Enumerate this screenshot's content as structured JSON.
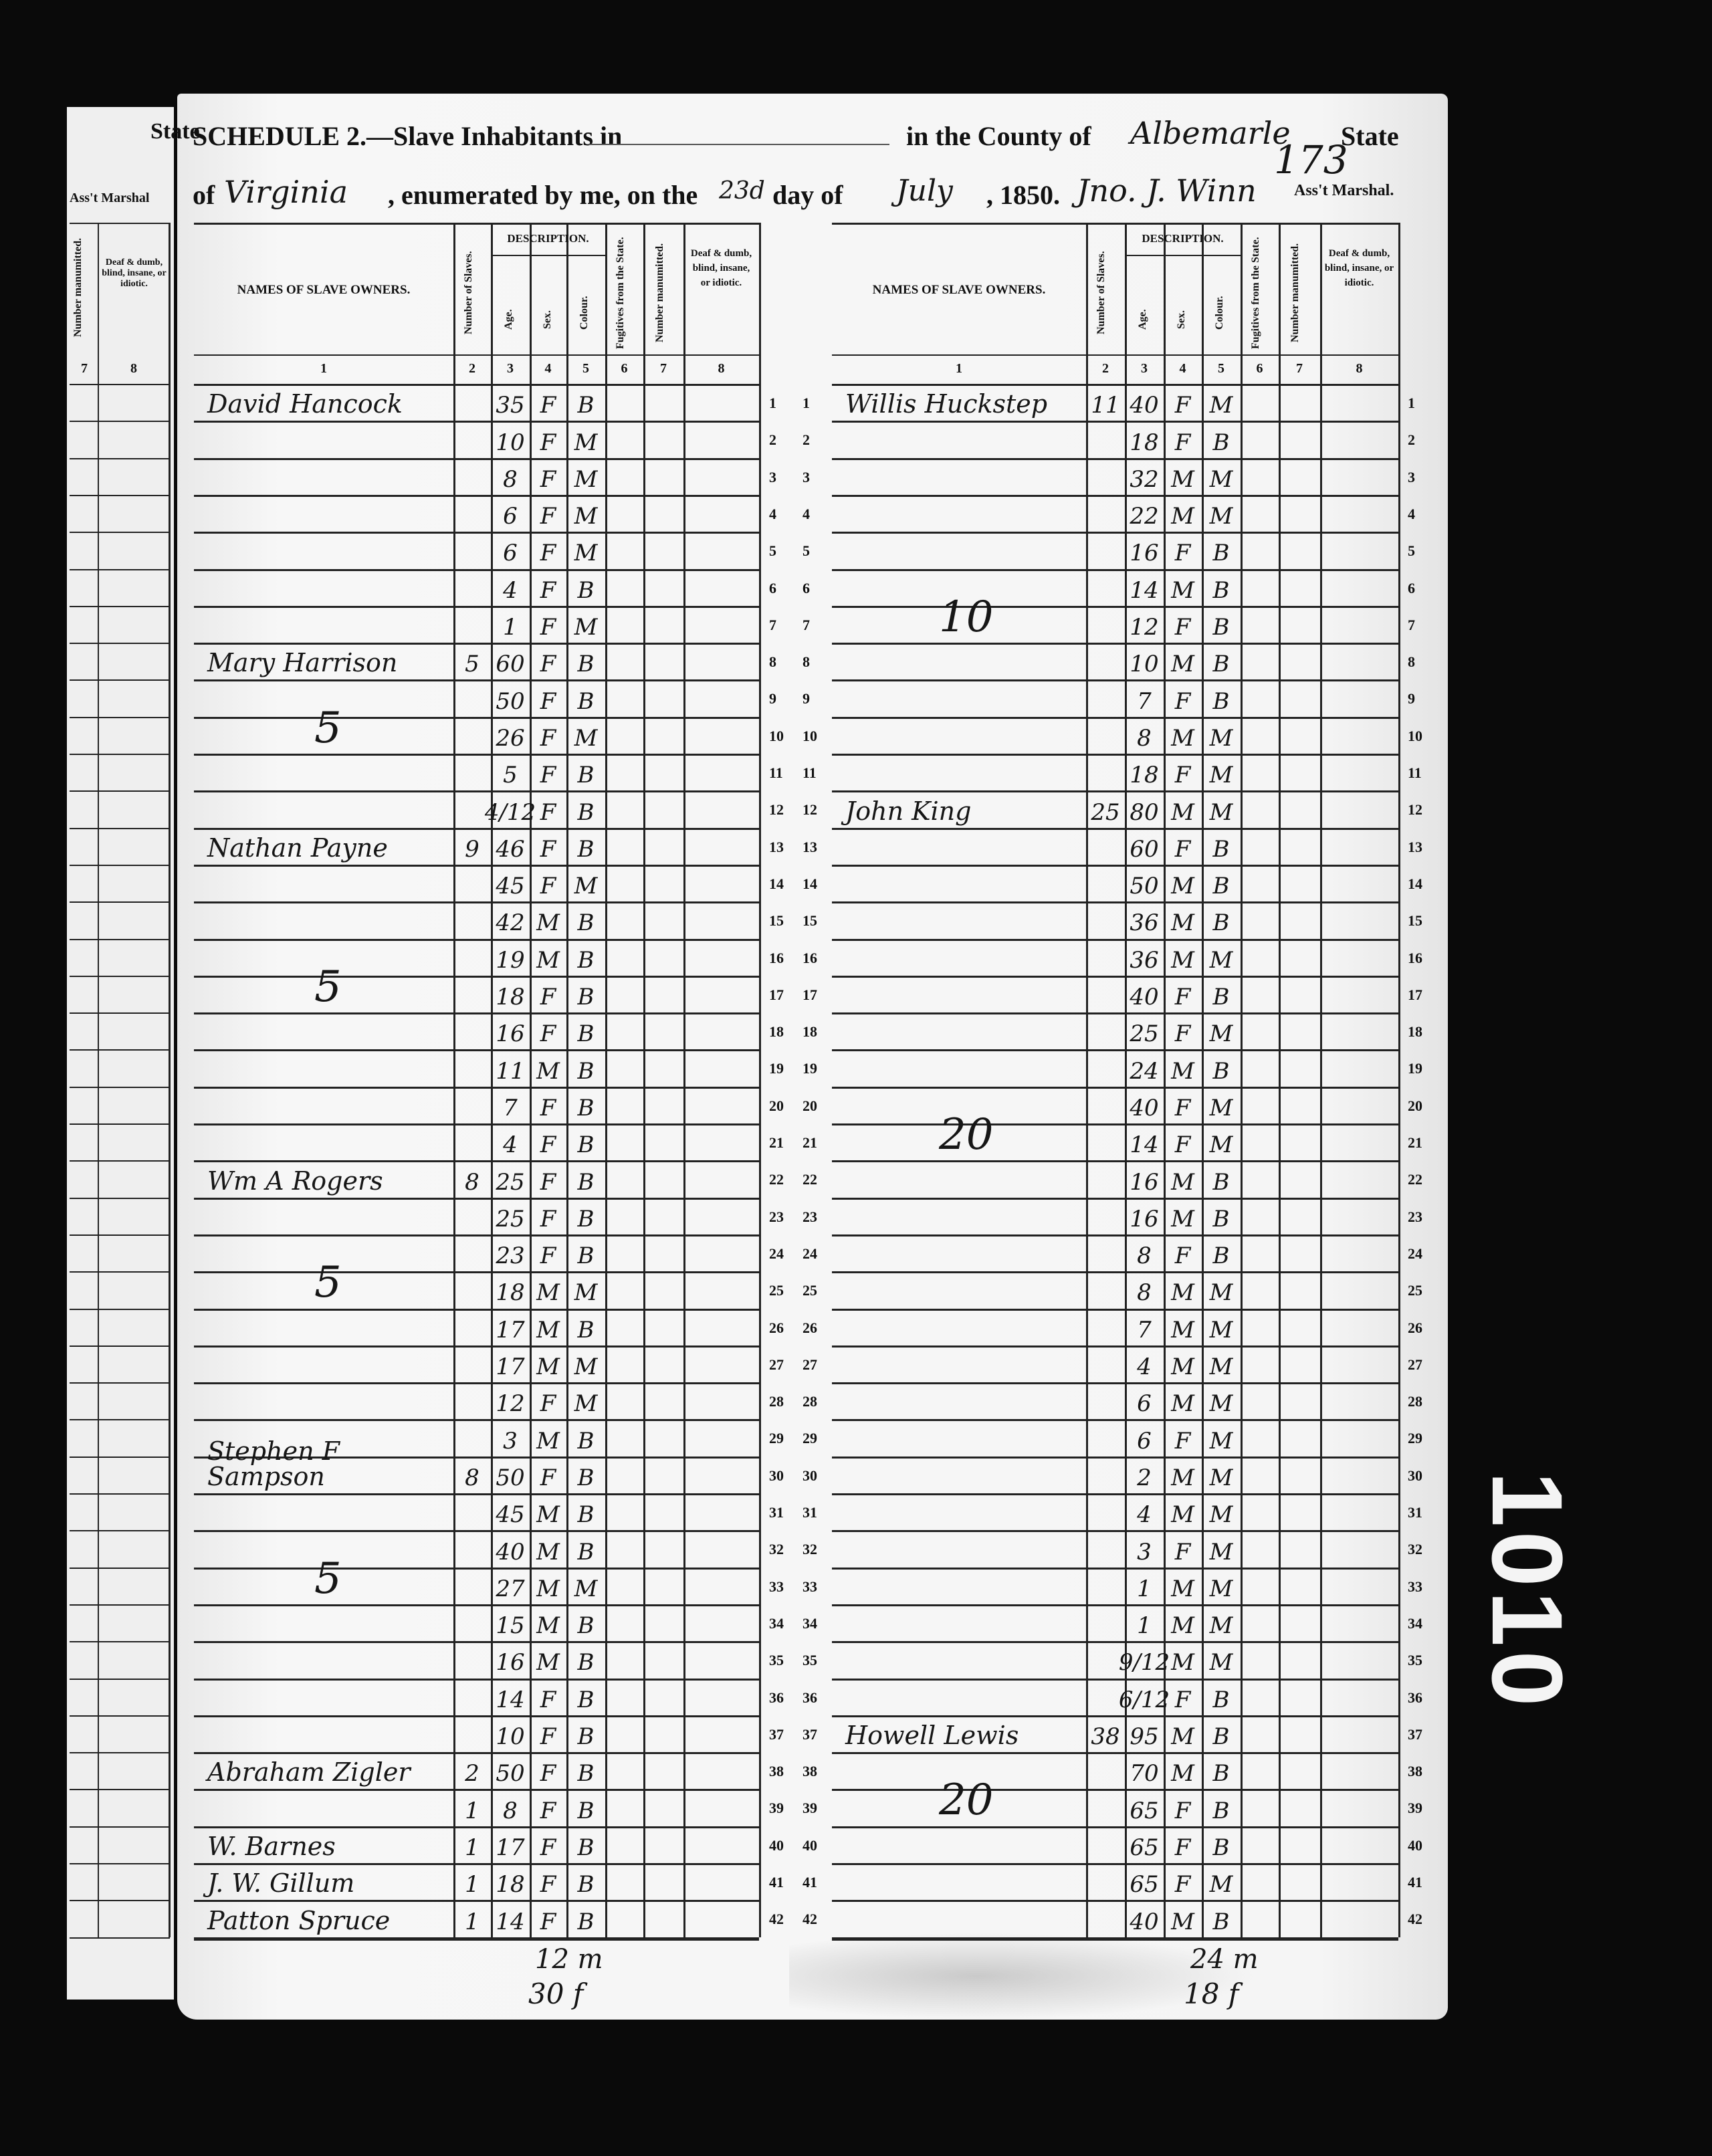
{
  "header": {
    "state_left": "State",
    "marshal_left": "Ass't Marshal",
    "schedule_title": "SCHEDULE 2.—Slave Inhabitants in",
    "county_label": "in the County of",
    "county": "Albemarle",
    "state_label": "State",
    "of_label": "of",
    "state": "Virginia",
    "enumerated_label": ", enumerated by me, on the",
    "day": "23d",
    "day_of_label": "day of",
    "month": "July",
    "year": ", 1850.",
    "marshal_name": "Jno. J. Winn",
    "marshal_label": "Ass't Marshal.",
    "page_number": "173"
  },
  "column_headers": {
    "owners": "NAMES OF SLAVE OWNERS.",
    "number_of_slaves": "Number of Slaves.",
    "description": "DESCRIPTION.",
    "age": "Age.",
    "sex": "Sex.",
    "colour": "Colour.",
    "fugitives": "Fugitives from the State.",
    "manumitted": "Number manumitted.",
    "deaf": "Deaf & dumb, blind, insane, or idiotic.",
    "numbers": [
      "1",
      "2",
      "3",
      "4",
      "5",
      "6",
      "7",
      "8"
    ],
    "strip_numbers": [
      "7",
      "8"
    ]
  },
  "left_table": {
    "rows": [
      {
        "n": "1",
        "owner": "David Hancock",
        "count": "",
        "age": "35",
        "sex": "F",
        "colour": "B"
      },
      {
        "n": "2",
        "owner": "",
        "count": "",
        "age": "10",
        "sex": "F",
        "colour": "M"
      },
      {
        "n": "3",
        "owner": "",
        "count": "",
        "age": "8",
        "sex": "F",
        "colour": "M"
      },
      {
        "n": "4",
        "owner": "",
        "count": "",
        "age": "6",
        "sex": "F",
        "colour": "M"
      },
      {
        "n": "5",
        "owner": "",
        "count": "",
        "age": "6",
        "sex": "F",
        "colour": "M"
      },
      {
        "n": "6",
        "owner": "",
        "count": "",
        "age": "4",
        "sex": "F",
        "colour": "B"
      },
      {
        "n": "7",
        "owner": "",
        "count": "",
        "age": "1",
        "sex": "F",
        "colour": "M"
      },
      {
        "n": "8",
        "owner": "Mary Harrison",
        "count": "5",
        "age": "60",
        "sex": "F",
        "colour": "B"
      },
      {
        "n": "9",
        "owner": "",
        "count": "",
        "age": "50",
        "sex": "F",
        "colour": "B"
      },
      {
        "n": "10",
        "owner": "",
        "count": "",
        "age": "26",
        "sex": "F",
        "colour": "M",
        "tally": "5"
      },
      {
        "n": "11",
        "owner": "",
        "count": "",
        "age": "5",
        "sex": "F",
        "colour": "B"
      },
      {
        "n": "12",
        "owner": "",
        "count": "",
        "age": "4/12",
        "sex": "F",
        "colour": "B"
      },
      {
        "n": "13",
        "owner": "Nathan Payne",
        "count": "9",
        "age": "46",
        "sex": "F",
        "colour": "B"
      },
      {
        "n": "14",
        "owner": "",
        "count": "",
        "age": "45",
        "sex": "F",
        "colour": "M"
      },
      {
        "n": "15",
        "owner": "",
        "count": "",
        "age": "42",
        "sex": "M",
        "colour": "B"
      },
      {
        "n": "16",
        "owner": "",
        "count": "",
        "age": "19",
        "sex": "M",
        "colour": "B"
      },
      {
        "n": "17",
        "owner": "",
        "count": "",
        "age": "18",
        "sex": "F",
        "colour": "B",
        "tally": "5"
      },
      {
        "n": "18",
        "owner": "",
        "count": "",
        "age": "16",
        "sex": "F",
        "colour": "B"
      },
      {
        "n": "19",
        "owner": "",
        "count": "",
        "age": "11",
        "sex": "M",
        "colour": "B"
      },
      {
        "n": "20",
        "owner": "",
        "count": "",
        "age": "7",
        "sex": "F",
        "colour": "B"
      },
      {
        "n": "21",
        "owner": "",
        "count": "",
        "age": "4",
        "sex": "F",
        "colour": "B"
      },
      {
        "n": "22",
        "owner": "Wm A Rogers",
        "count": "8",
        "age": "25",
        "sex": "F",
        "colour": "B"
      },
      {
        "n": "23",
        "owner": "",
        "count": "",
        "age": "25",
        "sex": "F",
        "colour": "B"
      },
      {
        "n": "24",
        "owner": "",
        "count": "",
        "age": "23",
        "sex": "F",
        "colour": "B"
      },
      {
        "n": "25",
        "owner": "",
        "count": "",
        "age": "18",
        "sex": "M",
        "colour": "M",
        "tally": "5"
      },
      {
        "n": "26",
        "owner": "",
        "count": "",
        "age": "17",
        "sex": "M",
        "colour": "B"
      },
      {
        "n": "27",
        "owner": "",
        "count": "",
        "age": "17",
        "sex": "M",
        "colour": "M"
      },
      {
        "n": "28",
        "owner": "",
        "count": "",
        "age": "12",
        "sex": "F",
        "colour": "M"
      },
      {
        "n": "29",
        "owner": "",
        "count": "",
        "age": "3",
        "sex": "M",
        "colour": "B"
      },
      {
        "n": "30",
        "owner": "Stephen F Sampson",
        "count": "8",
        "age": "50",
        "sex": "F",
        "colour": "B"
      },
      {
        "n": "31",
        "owner": "",
        "count": "",
        "age": "45",
        "sex": "M",
        "colour": "B"
      },
      {
        "n": "32",
        "owner": "",
        "count": "",
        "age": "40",
        "sex": "M",
        "colour": "B"
      },
      {
        "n": "33",
        "owner": "",
        "count": "",
        "age": "27",
        "sex": "M",
        "colour": "M",
        "tally": "5"
      },
      {
        "n": "34",
        "owner": "",
        "count": "",
        "age": "15",
        "sex": "M",
        "colour": "B"
      },
      {
        "n": "35",
        "owner": "",
        "count": "",
        "age": "16",
        "sex": "M",
        "colour": "B"
      },
      {
        "n": "36",
        "owner": "",
        "count": "",
        "age": "14",
        "sex": "F",
        "colour": "B"
      },
      {
        "n": "37",
        "owner": "",
        "count": "",
        "age": "10",
        "sex": "F",
        "colour": "B"
      },
      {
        "n": "38",
        "owner": "Abraham Zigler",
        "count": "2",
        "age": "50",
        "sex": "F",
        "colour": "B"
      },
      {
        "n": "39",
        "owner": "",
        "count": "1",
        "age": "8",
        "sex": "F",
        "colour": "B"
      },
      {
        "n": "40",
        "owner": "W. Barnes",
        "count": "1",
        "age": "17",
        "sex": "F",
        "colour": "B"
      },
      {
        "n": "41",
        "owner": "J. W. Gillum",
        "count": "1",
        "age": "18",
        "sex": "F",
        "colour": "B"
      },
      {
        "n": "42",
        "owner": "Patton Spruce",
        "count": "1",
        "age": "14",
        "sex": "F",
        "colour": "B"
      }
    ],
    "totals_male": "12 m",
    "totals_female": "30 f"
  },
  "right_table": {
    "rows": [
      {
        "n": "1",
        "owner": "Willis Huckstep",
        "count": "11",
        "age": "40",
        "sex": "F",
        "colour": "M"
      },
      {
        "n": "2",
        "owner": "",
        "count": "",
        "age": "18",
        "sex": "F",
        "colour": "B"
      },
      {
        "n": "3",
        "owner": "",
        "count": "",
        "age": "32",
        "sex": "M",
        "colour": "M"
      },
      {
        "n": "4",
        "owner": "",
        "count": "",
        "age": "22",
        "sex": "M",
        "colour": "M"
      },
      {
        "n": "5",
        "owner": "",
        "count": "",
        "age": "16",
        "sex": "F",
        "colour": "B"
      },
      {
        "n": "6",
        "owner": "",
        "count": "",
        "age": "14",
        "sex": "M",
        "colour": "B"
      },
      {
        "n": "7",
        "owner": "",
        "count": "",
        "age": "12",
        "sex": "F",
        "colour": "B",
        "tally": "10"
      },
      {
        "n": "8",
        "owner": "",
        "count": "",
        "age": "10",
        "sex": "M",
        "colour": "B"
      },
      {
        "n": "9",
        "owner": "",
        "count": "",
        "age": "7",
        "sex": "F",
        "colour": "B"
      },
      {
        "n": "10",
        "owner": "",
        "count": "",
        "age": "8",
        "sex": "M",
        "colour": "M"
      },
      {
        "n": "11",
        "owner": "",
        "count": "",
        "age": "18",
        "sex": "F",
        "colour": "M"
      },
      {
        "n": "12",
        "owner": "John King",
        "count": "25",
        "age": "80",
        "sex": "M",
        "colour": "M"
      },
      {
        "n": "13",
        "owner": "",
        "count": "",
        "age": "60",
        "sex": "F",
        "colour": "B"
      },
      {
        "n": "14",
        "owner": "",
        "count": "",
        "age": "50",
        "sex": "M",
        "colour": "B"
      },
      {
        "n": "15",
        "owner": "",
        "count": "",
        "age": "36",
        "sex": "M",
        "colour": "B"
      },
      {
        "n": "16",
        "owner": "",
        "count": "",
        "age": "36",
        "sex": "M",
        "colour": "M"
      },
      {
        "n": "17",
        "owner": "",
        "count": "",
        "age": "40",
        "sex": "F",
        "colour": "B"
      },
      {
        "n": "18",
        "owner": "",
        "count": "",
        "age": "25",
        "sex": "F",
        "colour": "M"
      },
      {
        "n": "19",
        "owner": "",
        "count": "",
        "age": "24",
        "sex": "M",
        "colour": "B"
      },
      {
        "n": "20",
        "owner": "",
        "count": "",
        "age": "40",
        "sex": "F",
        "colour": "M"
      },
      {
        "n": "21",
        "owner": "",
        "count": "",
        "age": "14",
        "sex": "F",
        "colour": "M",
        "tally": "20"
      },
      {
        "n": "22",
        "owner": "",
        "count": "",
        "age": "16",
        "sex": "M",
        "colour": "B"
      },
      {
        "n": "23",
        "owner": "",
        "count": "",
        "age": "16",
        "sex": "M",
        "colour": "B"
      },
      {
        "n": "24",
        "owner": "",
        "count": "",
        "age": "8",
        "sex": "F",
        "colour": "B"
      },
      {
        "n": "25",
        "owner": "",
        "count": "",
        "age": "8",
        "sex": "M",
        "colour": "M"
      },
      {
        "n": "26",
        "owner": "",
        "count": "",
        "age": "7",
        "sex": "M",
        "colour": "M"
      },
      {
        "n": "27",
        "owner": "",
        "count": "",
        "age": "4",
        "sex": "M",
        "colour": "M"
      },
      {
        "n": "28",
        "owner": "",
        "count": "",
        "age": "6",
        "sex": "M",
        "colour": "M"
      },
      {
        "n": "29",
        "owner": "",
        "count": "",
        "age": "6",
        "sex": "F",
        "colour": "M"
      },
      {
        "n": "30",
        "owner": "",
        "count": "",
        "age": "2",
        "sex": "M",
        "colour": "M"
      },
      {
        "n": "31",
        "owner": "",
        "count": "",
        "age": "4",
        "sex": "M",
        "colour": "M"
      },
      {
        "n": "32",
        "owner": "",
        "count": "",
        "age": "3",
        "sex": "F",
        "colour": "M"
      },
      {
        "n": "33",
        "owner": "",
        "count": "",
        "age": "1",
        "sex": "M",
        "colour": "M"
      },
      {
        "n": "34",
        "owner": "",
        "count": "",
        "age": "1",
        "sex": "M",
        "colour": "M"
      },
      {
        "n": "35",
        "owner": "",
        "count": "",
        "age": "9/12",
        "sex": "M",
        "colour": "M"
      },
      {
        "n": "36",
        "owner": "",
        "count": "",
        "age": "6/12",
        "sex": "F",
        "colour": "B"
      },
      {
        "n": "37",
        "owner": "Howell Lewis",
        "count": "38",
        "age": "95",
        "sex": "M",
        "colour": "B"
      },
      {
        "n": "38",
        "owner": "",
        "count": "",
        "age": "70",
        "sex": "M",
        "colour": "B"
      },
      {
        "n": "39",
        "owner": "",
        "count": "",
        "age": "65",
        "sex": "F",
        "colour": "B",
        "tally": "20"
      },
      {
        "n": "40",
        "owner": "",
        "count": "",
        "age": "65",
        "sex": "F",
        "colour": "B"
      },
      {
        "n": "41",
        "owner": "",
        "count": "",
        "age": "65",
        "sex": "F",
        "colour": "M"
      },
      {
        "n": "42",
        "owner": "",
        "count": "",
        "age": "40",
        "sex": "M",
        "colour": "B"
      }
    ],
    "totals_male": "24 m",
    "totals_female": "18 f"
  },
  "film_stamp": "1010"
}
